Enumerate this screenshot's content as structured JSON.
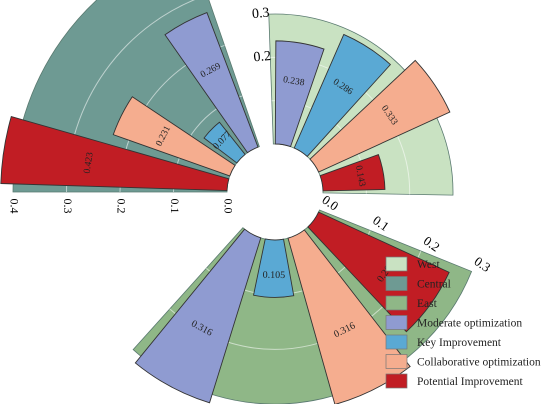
{
  "chart_data": {
    "type": "radial-bar",
    "title": "",
    "groups": [
      {
        "name": "West",
        "color": "#c9e2c2",
        "rmax": 0.3,
        "ticks": [
          "0.2",
          "0.3"
        ],
        "values": [
          {
            "series": "Moderate optimization",
            "value": 0.238,
            "label": "0.238"
          },
          {
            "series": "Key Improvement",
            "value": 0.286,
            "label": "0.286"
          },
          {
            "series": "Collaborative optimization",
            "value": 0.333,
            "label": "0.333"
          },
          {
            "series": "Potential Improvement",
            "value": 0.143,
            "label": "0.143"
          }
        ]
      },
      {
        "name": "Central",
        "color": "#6e9a93",
        "rmax": 0.4,
        "ticks": [
          "0.0",
          "0.1",
          "0.2",
          "0.3",
          "0.4"
        ],
        "values": [
          {
            "series": "Potential Improvement",
            "value": 0.423,
            "label": "0.423"
          },
          {
            "series": "Collaborative optimization",
            "value": 0.231,
            "label": "0.231"
          },
          {
            "series": "Key Improvement",
            "value": 0.077,
            "label": "0.077"
          },
          {
            "series": "Moderate optimization",
            "value": 0.269,
            "label": "0.269"
          }
        ]
      },
      {
        "name": "East",
        "color": "#8fb787",
        "rmax": 0.3,
        "ticks": [
          "0.0",
          "0.1",
          "0.2",
          "0.3"
        ],
        "values": [
          {
            "series": "Potential Improvement",
            "value": 0.263,
            "label": "0.263"
          },
          {
            "series": "Collaborative optimization",
            "value": 0.316,
            "label": "0.316"
          },
          {
            "series": "Key Improvement",
            "value": 0.105,
            "label": "0.105"
          },
          {
            "series": "Moderate optimization",
            "value": 0.316,
            "label": "0.316"
          }
        ]
      }
    ],
    "series_colors": {
      "Moderate optimization": "#8f9bd1",
      "Key Improvement": "#5aa9d4",
      "Collaborative optimization": "#f5ad8f",
      "Potential Improvement": "#c11d24"
    },
    "legend": {
      "position": "right",
      "items": [
        {
          "label": "West",
          "color": "#c9e2c2"
        },
        {
          "label": "Central",
          "color": "#6e9a93"
        },
        {
          "label": "East",
          "color": "#8fb787"
        },
        {
          "label": "Moderate optimization",
          "color": "#8f9bd1"
        },
        {
          "label": "Key Improvement",
          "color": "#5aa9d4"
        },
        {
          "label": "Collaborative optimization",
          "color": "#f5ad8f"
        },
        {
          "label": "Potential Improvement",
          "color": "#c11d24"
        }
      ]
    }
  }
}
